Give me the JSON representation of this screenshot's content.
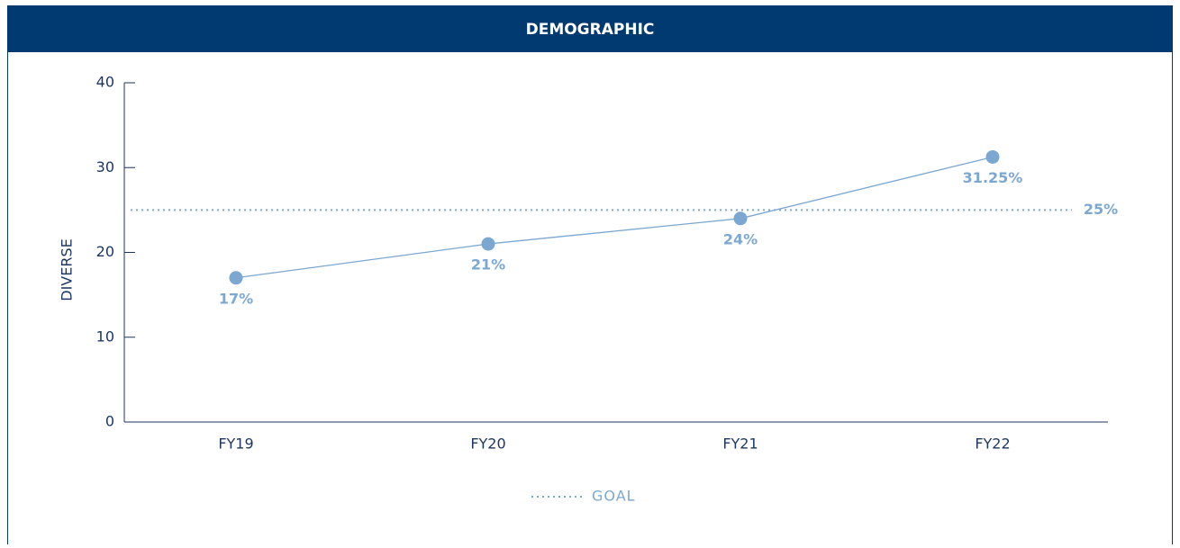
{
  "chart_data": {
    "type": "line",
    "title": "DEMOGRAPHIC",
    "ylabel": "DIVERSE",
    "categories": [
      "FY19",
      "FY20",
      "FY21",
      "FY22"
    ],
    "values": [
      17,
      21,
      24,
      31.25
    ],
    "value_labels": [
      "17%",
      "21%",
      "24%",
      "31.25%"
    ],
    "color": "#7ba7d1",
    "ylim": [
      0,
      40
    ],
    "yticks": [
      0,
      10,
      20,
      30,
      40
    ],
    "reference_line": {
      "name": "GOAL",
      "value": 25,
      "label": "25%",
      "color": "#7ba7d1"
    }
  }
}
